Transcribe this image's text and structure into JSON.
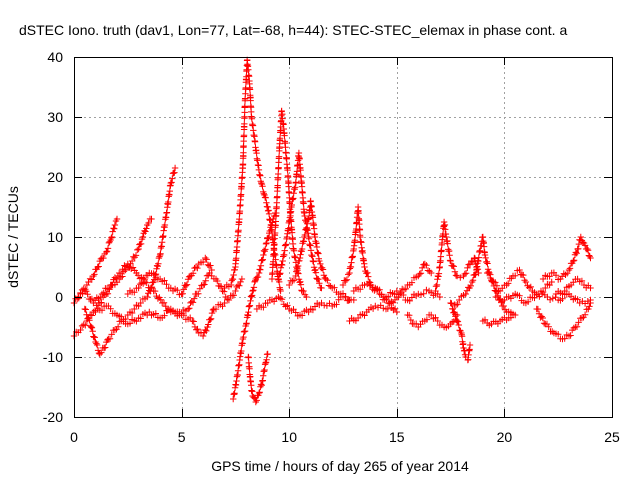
{
  "chart_data": {
    "type": "scatter",
    "title": "dSTEC Iono. truth (dav1, Lon=77, Lat=-68, h=44): STEC-STEC_elemax in phase cont. a",
    "xlabel": "GPS time / hours of day 265 of year 2014",
    "ylabel": "dSTEC  / TECUs",
    "xlim": [
      0,
      25
    ],
    "ylim": [
      -20,
      40
    ],
    "x_ticks": [
      0,
      5,
      10,
      15,
      20,
      25
    ],
    "y_ticks": [
      -20,
      -10,
      0,
      10,
      20,
      30,
      40
    ],
    "x_tick_labels": [
      "0",
      "5",
      "10",
      "15",
      "20",
      "25"
    ],
    "y_tick_labels": [
      "-20",
      "-10",
      "0",
      "10",
      "20",
      "30",
      "40"
    ],
    "grid": true,
    "marker": "plus",
    "color": "#ff0000",
    "series": [
      {
        "points": [
          [
            0.0,
            -1.0
          ],
          [
            0.3,
            0.5
          ],
          [
            0.6,
            2.0
          ],
          [
            0.9,
            3.5
          ],
          [
            1.1,
            5.0
          ],
          [
            1.3,
            6.5
          ],
          [
            1.5,
            7.5
          ],
          [
            1.7,
            9.5
          ],
          [
            1.9,
            12.0
          ],
          [
            2.0,
            13.0
          ]
        ]
      },
      {
        "points": [
          [
            0.0,
            -6.5
          ],
          [
            0.3,
            -5.5
          ],
          [
            0.6,
            -4.0
          ],
          [
            0.9,
            -2.5
          ],
          [
            1.2,
            -1.0
          ],
          [
            1.5,
            0.5
          ],
          [
            1.8,
            2.0
          ],
          [
            2.1,
            3.0
          ],
          [
            2.4,
            4.5
          ],
          [
            2.7,
            6.0
          ],
          [
            3.0,
            8.0
          ],
          [
            3.2,
            10.0
          ],
          [
            3.4,
            12.0
          ],
          [
            3.6,
            13.0
          ]
        ]
      },
      {
        "points": [
          [
            0.5,
            -2.0
          ],
          [
            0.8,
            -5.0
          ],
          [
            1.0,
            -7.5
          ],
          [
            1.2,
            -9.5
          ],
          [
            1.4,
            -8.5
          ],
          [
            1.6,
            -7.0
          ],
          [
            1.9,
            -5.5
          ],
          [
            2.2,
            -4.0
          ],
          [
            2.5,
            -3.0
          ],
          [
            2.8,
            -2.0
          ],
          [
            3.1,
            -1.0
          ],
          [
            3.4,
            0.0
          ],
          [
            3.7,
            2.5
          ],
          [
            4.0,
            7.0
          ],
          [
            4.3,
            14.0
          ],
          [
            4.5,
            19.0
          ],
          [
            4.7,
            21.5
          ]
        ]
      },
      {
        "points": [
          [
            0.2,
            0.0
          ],
          [
            0.5,
            1.0
          ],
          [
            0.9,
            -1.0
          ],
          [
            1.3,
            0.5
          ],
          [
            1.7,
            2.0
          ],
          [
            2.1,
            4.0
          ],
          [
            2.5,
            5.5
          ],
          [
            2.9,
            4.0
          ],
          [
            3.3,
            2.5
          ],
          [
            3.7,
            1.0
          ],
          [
            4.1,
            -1.0
          ],
          [
            4.5,
            -2.5
          ],
          [
            4.9,
            -3.0
          ],
          [
            5.3,
            -2.0
          ],
          [
            5.7,
            0.5
          ],
          [
            6.0,
            2.0
          ],
          [
            6.3,
            4.0
          ],
          [
            6.6,
            3.0
          ],
          [
            6.9,
            1.0
          ],
          [
            7.2,
            -0.5
          ],
          [
            7.5,
            1.0
          ],
          [
            7.8,
            3.0
          ]
        ]
      },
      {
        "points": [
          [
            1.0,
            -2.5
          ],
          [
            1.5,
            -1.5
          ],
          [
            2.0,
            -3.0
          ],
          [
            2.5,
            -4.5
          ],
          [
            3.0,
            -3.5
          ],
          [
            3.5,
            -2.5
          ],
          [
            4.0,
            -3.5
          ],
          [
            4.5,
            -2.0
          ],
          [
            5.0,
            -3.0
          ],
          [
            5.5,
            -4.0
          ],
          [
            5.8,
            -6.0
          ],
          [
            6.0,
            -6.5
          ],
          [
            6.2,
            -5.0
          ],
          [
            6.5,
            -2.0
          ],
          [
            7.0,
            -1.0
          ]
        ]
      },
      {
        "points": [
          [
            2.5,
            0.5
          ],
          [
            3.0,
            1.5
          ],
          [
            3.5,
            4.0
          ],
          [
            4.0,
            3.0
          ],
          [
            4.5,
            1.5
          ],
          [
            5.0,
            0.5
          ],
          [
            5.4,
            3.5
          ],
          [
            5.8,
            5.5
          ],
          [
            6.1,
            6.5
          ],
          [
            6.4,
            4.5
          ]
        ]
      },
      {
        "points": [
          [
            7.0,
            1.5
          ],
          [
            7.3,
            2.0
          ],
          [
            7.5,
            5.0
          ],
          [
            7.7,
            14.0
          ],
          [
            7.85,
            22.0
          ],
          [
            7.95,
            33.0
          ],
          [
            8.05,
            39.5
          ],
          [
            8.15,
            36.0
          ],
          [
            8.25,
            30.0
          ],
          [
            8.4,
            26.0
          ],
          [
            8.55,
            22.0
          ],
          [
            8.7,
            19.0
          ],
          [
            8.85,
            17.0
          ],
          [
            9.0,
            15.0
          ],
          [
            9.15,
            12.0
          ],
          [
            9.3,
            8.0
          ],
          [
            9.45,
            4.0
          ],
          [
            9.6,
            1.0
          ]
        ]
      },
      {
        "points": [
          [
            7.4,
            -17.0
          ],
          [
            7.55,
            -14.0
          ],
          [
            7.7,
            -10.5
          ],
          [
            7.85,
            -7.0
          ],
          [
            8.0,
            -4.5
          ],
          [
            8.15,
            -1.5
          ],
          [
            8.3,
            1.0
          ],
          [
            8.45,
            3.0
          ],
          [
            8.6,
            4.0
          ],
          [
            8.8,
            7.0
          ],
          [
            8.95,
            9.0
          ],
          [
            9.1,
            11.0
          ],
          [
            9.25,
            13.0
          ],
          [
            9.35,
            14.0
          ]
        ]
      },
      {
        "points": [
          [
            8.1,
            -10.0
          ],
          [
            8.2,
            -14.0
          ],
          [
            8.3,
            -16.5
          ],
          [
            8.45,
            -17.5
          ],
          [
            8.6,
            -16.0
          ],
          [
            8.75,
            -14.0
          ],
          [
            8.9,
            -11.0
          ],
          [
            9.0,
            -9.5
          ]
        ]
      },
      {
        "points": [
          [
            9.2,
            3.0
          ],
          [
            9.4,
            14.0
          ],
          [
            9.55,
            25.0
          ],
          [
            9.65,
            31.0
          ],
          [
            9.75,
            28.0
          ],
          [
            9.85,
            24.0
          ],
          [
            9.95,
            20.0
          ],
          [
            10.05,
            14.0
          ],
          [
            10.2,
            8.0
          ],
          [
            10.4,
            4.0
          ],
          [
            10.6,
            1.0
          ],
          [
            10.8,
            0.0
          ]
        ]
      },
      {
        "points": [
          [
            9.5,
            3.0
          ],
          [
            9.7,
            6.0
          ],
          [
            9.9,
            10.0
          ],
          [
            10.1,
            15.0
          ],
          [
            10.3,
            19.0
          ],
          [
            10.45,
            24.0
          ],
          [
            10.55,
            20.0
          ],
          [
            10.7,
            14.0
          ],
          [
            10.9,
            10.0
          ],
          [
            11.1,
            6.0
          ],
          [
            11.3,
            3.0
          ],
          [
            11.5,
            1.5
          ]
        ]
      },
      {
        "points": [
          [
            10.0,
            2.0
          ],
          [
            10.3,
            3.5
          ],
          [
            10.5,
            6.5
          ],
          [
            10.7,
            10.0
          ],
          [
            10.9,
            13.0
          ],
          [
            11.0,
            16.0
          ],
          [
            11.2,
            10.0
          ],
          [
            11.4,
            6.0
          ],
          [
            11.7,
            3.0
          ],
          [
            12.0,
            1.5
          ],
          [
            12.4,
            0.5
          ],
          [
            12.8,
            -0.5
          ]
        ]
      },
      {
        "points": [
          [
            8.5,
            -2.0
          ],
          [
            9.0,
            -1.0
          ],
          [
            9.5,
            0.0
          ],
          [
            10.0,
            -2.0
          ],
          [
            10.5,
            -3.0
          ],
          [
            11.0,
            -2.0
          ],
          [
            11.5,
            -1.0
          ],
          [
            12.0,
            -1.5
          ],
          [
            12.5,
            0.0
          ],
          [
            13.0,
            -0.5
          ]
        ]
      },
      {
        "points": [
          [
            12.5,
            2.0
          ],
          [
            12.8,
            4.0
          ],
          [
            13.0,
            8.0
          ],
          [
            13.1,
            11.0
          ],
          [
            13.2,
            15.0
          ],
          [
            13.3,
            10.0
          ],
          [
            13.5,
            5.0
          ],
          [
            13.8,
            2.0
          ],
          [
            14.2,
            0.5
          ],
          [
            14.6,
            -1.0
          ],
          [
            15.0,
            -2.5
          ]
        ]
      },
      {
        "points": [
          [
            12.8,
            -4.0
          ],
          [
            13.2,
            -3.5
          ],
          [
            13.6,
            -2.5
          ],
          [
            14.0,
            -1.5
          ],
          [
            14.5,
            -2.0
          ],
          [
            15.0,
            0.0
          ],
          [
            15.5,
            2.0
          ],
          [
            16.0,
            3.5
          ],
          [
            16.3,
            5.5
          ],
          [
            16.6,
            4.0
          ]
        ]
      },
      {
        "points": [
          [
            13.0,
            1.0
          ],
          [
            13.5,
            2.0
          ],
          [
            14.0,
            1.5
          ],
          [
            14.5,
            0.0
          ],
          [
            15.0,
            1.0
          ],
          [
            15.5,
            -0.5
          ],
          [
            16.0,
            0.5
          ],
          [
            16.5,
            1.0
          ],
          [
            17.0,
            0.0
          ]
        ]
      },
      {
        "points": [
          [
            15.5,
            -3.0
          ],
          [
            15.8,
            -4.5
          ],
          [
            16.0,
            -5.0
          ],
          [
            16.3,
            -4.0
          ],
          [
            16.6,
            -3.0
          ],
          [
            16.9,
            -4.0
          ],
          [
            17.2,
            -5.0
          ],
          [
            17.5,
            -4.5
          ],
          [
            17.8,
            -3.0
          ]
        ]
      },
      {
        "points": [
          [
            16.8,
            1.0
          ],
          [
            17.0,
            5.0
          ],
          [
            17.1,
            9.0
          ],
          [
            17.2,
            12.5
          ],
          [
            17.3,
            10.0
          ],
          [
            17.5,
            6.0
          ],
          [
            17.8,
            3.5
          ],
          [
            18.1,
            3.5
          ],
          [
            18.4,
            5.5
          ],
          [
            18.6,
            6.5
          ],
          [
            18.8,
            4.0
          ]
        ]
      },
      {
        "points": [
          [
            17.5,
            -1.0
          ],
          [
            17.8,
            -4.0
          ],
          [
            18.0,
            -6.0
          ],
          [
            18.1,
            -8.5
          ],
          [
            18.2,
            -10.0
          ],
          [
            18.3,
            -10.5
          ],
          [
            18.4,
            -8.0
          ]
        ]
      },
      {
        "points": [
          [
            17.6,
            -2.0
          ],
          [
            17.9,
            -0.5
          ],
          [
            18.2,
            0.5
          ],
          [
            18.5,
            2.5
          ],
          [
            18.7,
            4.5
          ],
          [
            18.9,
            8.5
          ],
          [
            19.0,
            10.0
          ],
          [
            19.1,
            7.0
          ],
          [
            19.3,
            4.0
          ],
          [
            19.6,
            1.0
          ],
          [
            19.9,
            -1.5
          ],
          [
            20.1,
            -2.5
          ],
          [
            20.4,
            -3.0
          ]
        ]
      },
      {
        "points": [
          [
            19.0,
            -4.0
          ],
          [
            19.4,
            -4.5
          ],
          [
            19.8,
            -4.0
          ],
          [
            20.2,
            -3.5
          ],
          [
            20.5,
            -3.0
          ]
        ]
      },
      {
        "points": [
          [
            19.2,
            4.0
          ],
          [
            19.5,
            2.5
          ],
          [
            19.8,
            1.0
          ],
          [
            20.1,
            2.0
          ],
          [
            20.4,
            3.5
          ],
          [
            20.7,
            4.5
          ],
          [
            21.0,
            2.5
          ],
          [
            21.3,
            1.0
          ],
          [
            21.6,
            0.5
          ],
          [
            21.9,
            1.5
          ],
          [
            22.2,
            2.5
          ]
        ]
      },
      {
        "points": [
          [
            19.6,
            0.0
          ],
          [
            20.0,
            -0.5
          ],
          [
            20.5,
            0.5
          ],
          [
            21.0,
            -1.0
          ],
          [
            21.5,
            0.5
          ],
          [
            22.0,
            0.0
          ],
          [
            22.5,
            -0.5
          ],
          [
            23.0,
            0.5
          ],
          [
            23.5,
            -1.0
          ],
          [
            24.0,
            -0.5
          ]
        ]
      },
      {
        "points": [
          [
            21.5,
            -2.0
          ],
          [
            21.9,
            -4.5
          ],
          [
            22.3,
            -6.0
          ],
          [
            22.7,
            -7.0
          ],
          [
            23.0,
            -6.5
          ],
          [
            23.3,
            -5.0
          ],
          [
            23.6,
            -3.5
          ],
          [
            23.9,
            -2.0
          ],
          [
            24.0,
            -1.0
          ]
        ]
      },
      {
        "points": [
          [
            21.8,
            3.0
          ],
          [
            22.2,
            4.0
          ],
          [
            22.6,
            3.0
          ],
          [
            23.0,
            4.5
          ],
          [
            23.2,
            6.0
          ],
          [
            23.4,
            8.0
          ],
          [
            23.55,
            10.0
          ],
          [
            23.7,
            9.0
          ],
          [
            23.85,
            8.0
          ],
          [
            24.0,
            6.5
          ]
        ]
      },
      {
        "points": [
          [
            22.4,
            0.5
          ],
          [
            22.8,
            1.0
          ],
          [
            23.1,
            2.0
          ],
          [
            23.4,
            3.0
          ],
          [
            23.7,
            2.0
          ],
          [
            24.0,
            1.5
          ]
        ]
      }
    ]
  }
}
